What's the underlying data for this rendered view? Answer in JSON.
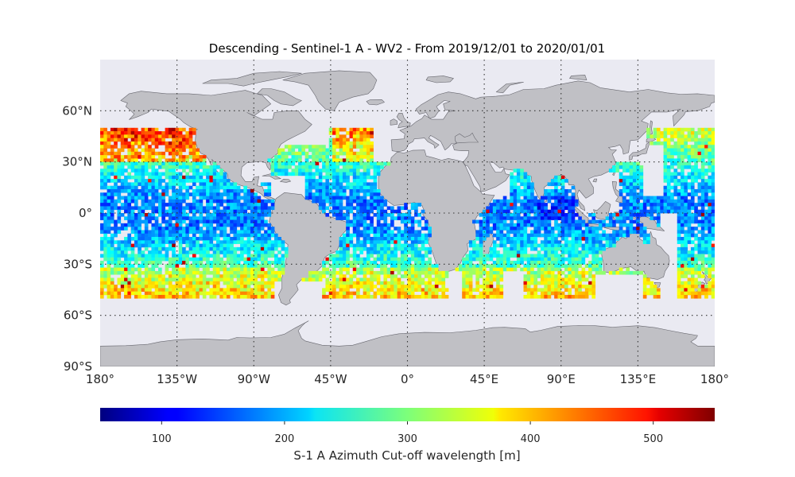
{
  "title": "Descending - Sentinel-1 A - WV2 - From 2019/12/01 to 2020/01/01",
  "map": {
    "projection": "equirectangular",
    "lon_range": [
      -180,
      180
    ],
    "lat_range": [
      -90,
      90
    ],
    "ocean_color": "#eaeaf2",
    "land_color": "#c0c0c5",
    "coast_color": "#66666e",
    "data_lat_range": [
      -50,
      50
    ],
    "data_cell_deg": 2,
    "lat_ticks": [
      {
        "value": 60,
        "label": "60°N"
      },
      {
        "value": 30,
        "label": "30°N"
      },
      {
        "value": 0,
        "label": "0°"
      },
      {
        "value": -30,
        "label": "30°S"
      },
      {
        "value": -60,
        "label": "60°S"
      },
      {
        "value": -90,
        "label": "90°S"
      }
    ],
    "lon_ticks": [
      {
        "value": -180,
        "label": "180°"
      },
      {
        "value": -135,
        "label": "135°W"
      },
      {
        "value": -90,
        "label": "90°W"
      },
      {
        "value": -45,
        "label": "45°W"
      },
      {
        "value": 0,
        "label": "0°"
      },
      {
        "value": 45,
        "label": "45°E"
      },
      {
        "value": 90,
        "label": "90°E"
      },
      {
        "value": 135,
        "label": "135°E"
      },
      {
        "value": 180,
        "label": "180°"
      }
    ],
    "grid": "dotted"
  },
  "colorbar": {
    "label": "S-1 A Azimuth Cut-off wavelength [m]",
    "min": 50,
    "max": 550,
    "colormap": "jet",
    "ticks": [
      100,
      200,
      300,
      400,
      500
    ]
  }
}
